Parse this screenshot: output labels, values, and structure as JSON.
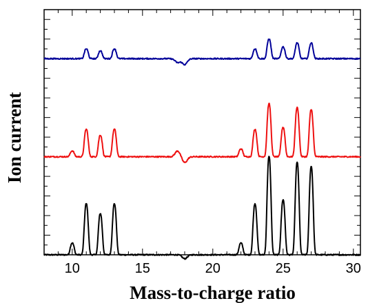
{
  "chart_data": {
    "type": "line",
    "title": "",
    "xlabel": "Mass-to-charge ratio",
    "ylabel": "Ion current",
    "xlim": [
      8,
      30.5
    ],
    "ylim": [
      0,
      12.5
    ],
    "x_ticks": [
      10,
      15,
      20,
      25,
      30
    ],
    "x_tick_labels": [
      "10",
      "15",
      "20",
      "25",
      "30"
    ],
    "y_tick_labels_shown": false,
    "grid": false,
    "legend": "none",
    "series": [
      {
        "color": "#000000",
        "baseline": 0.0,
        "peaks": [
          [
            10,
            0.6
          ],
          [
            11,
            2.6
          ],
          [
            12,
            2.1
          ],
          [
            13,
            2.6
          ],
          [
            22,
            0.6
          ],
          [
            23,
            2.6
          ],
          [
            24,
            5.0
          ],
          [
            25,
            2.8
          ],
          [
            26,
            4.7
          ],
          [
            27,
            4.5
          ]
        ],
        "dips": [
          [
            18,
            -0.2
          ]
        ]
      },
      {
        "color": "#ee1111",
        "baseline": 5.0,
        "peaks": [
          [
            10,
            0.3
          ],
          [
            11,
            1.4
          ],
          [
            12,
            1.1
          ],
          [
            13,
            1.4
          ],
          [
            22,
            0.4
          ],
          [
            23,
            1.4
          ],
          [
            24,
            2.7
          ],
          [
            25,
            1.5
          ],
          [
            26,
            2.5
          ],
          [
            27,
            2.4
          ]
        ],
        "dips": [
          [
            17.5,
            0.3
          ],
          [
            18,
            -0.3
          ]
        ]
      },
      {
        "color": "#000099",
        "baseline": 10.0,
        "peaks": [
          [
            11,
            0.5
          ],
          [
            12,
            0.4
          ],
          [
            13,
            0.5
          ],
          [
            23,
            0.5
          ],
          [
            24,
            1.0
          ],
          [
            25,
            0.6
          ],
          [
            26,
            0.8
          ],
          [
            27,
            0.8
          ]
        ],
        "dips": [
          [
            17.5,
            -0.2
          ],
          [
            18,
            -0.3
          ]
        ]
      }
    ]
  }
}
